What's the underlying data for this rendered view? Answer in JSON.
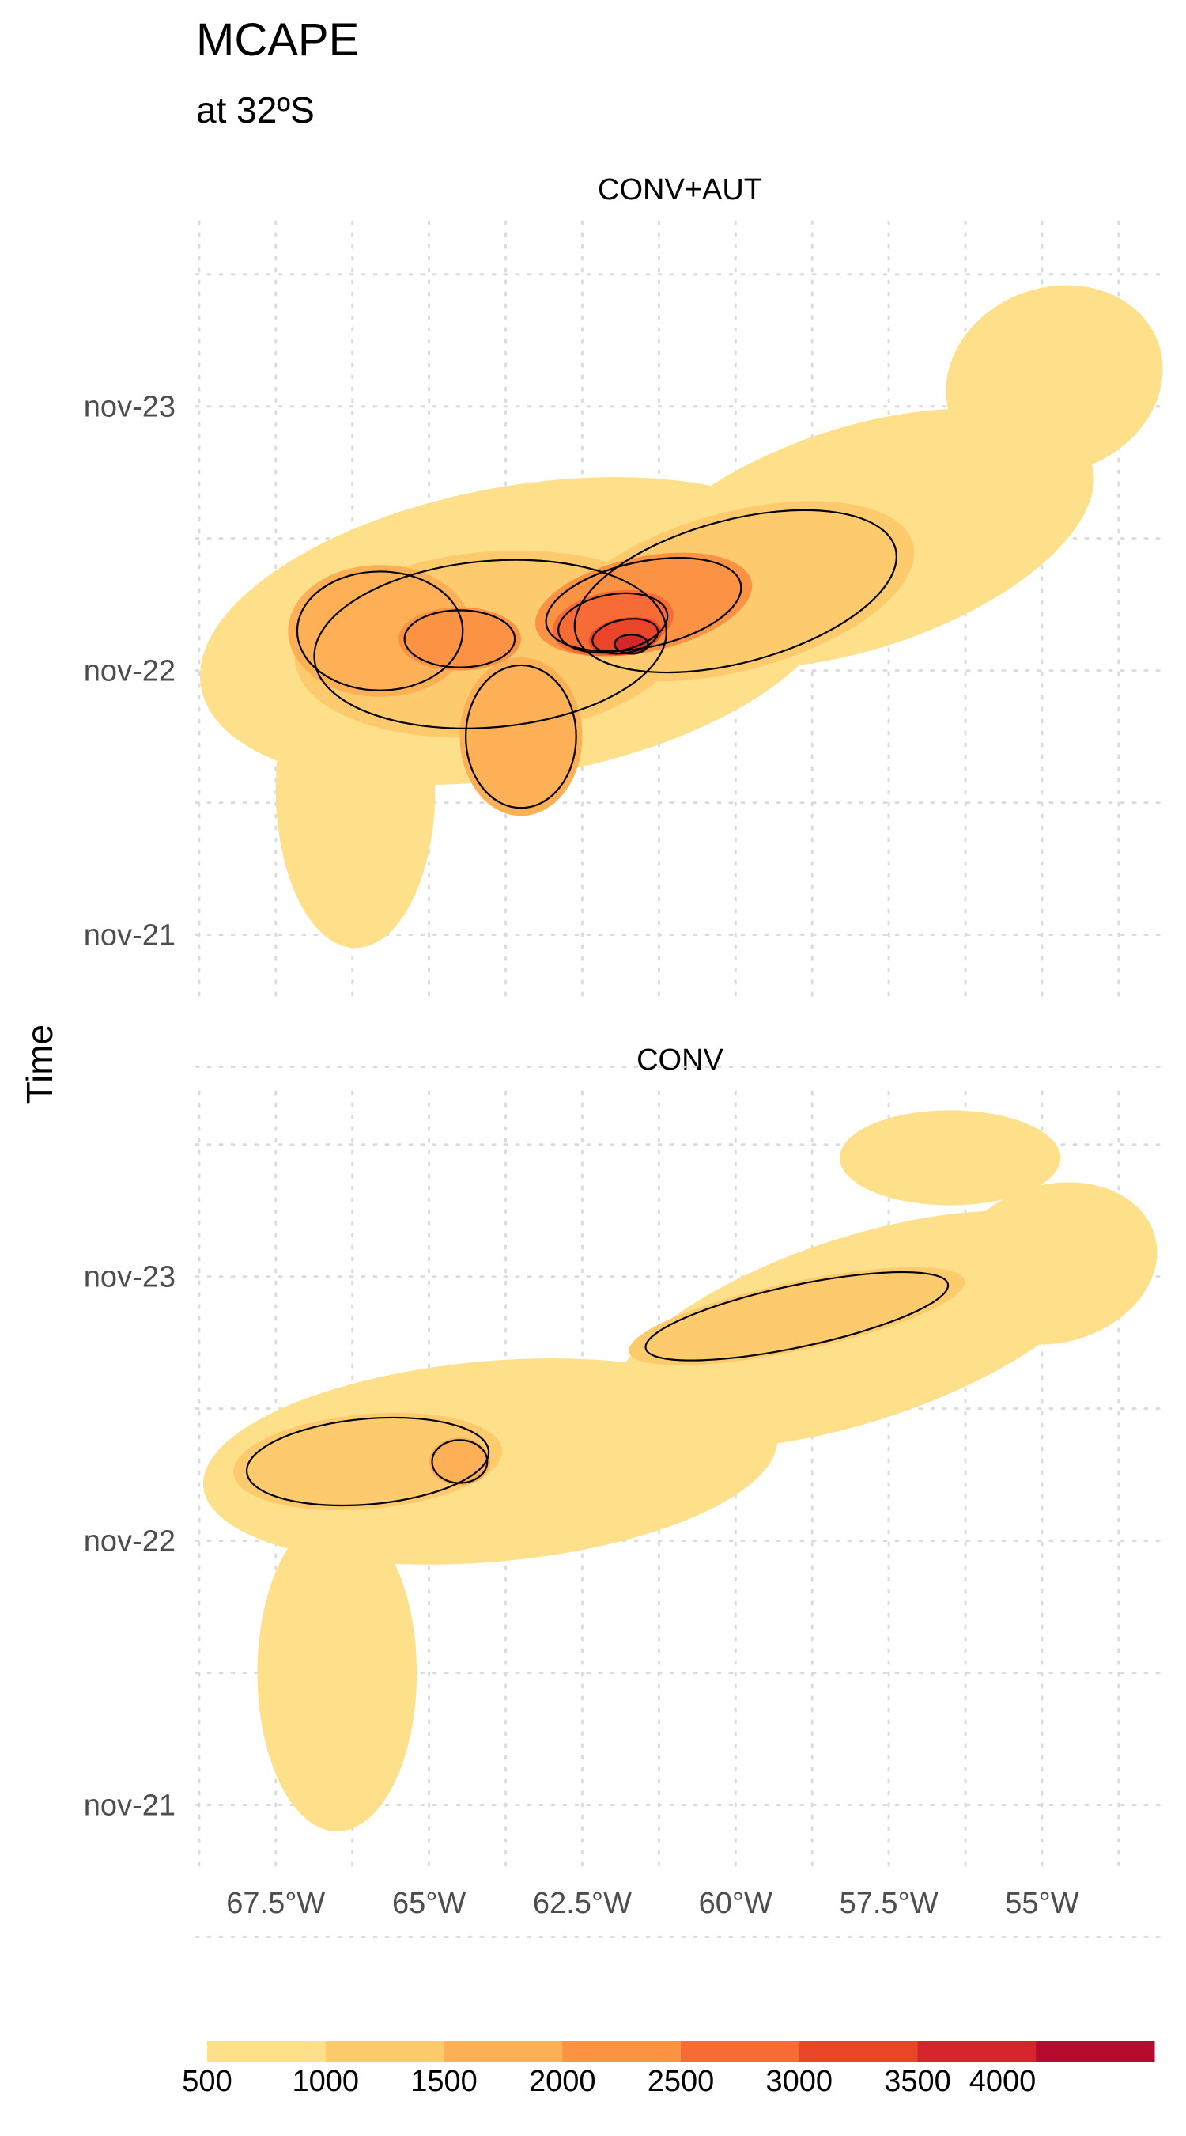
{
  "chart_data": {
    "type": "heatmap",
    "title": "MCAPE",
    "subtitle": "at 32ºS",
    "ylabel": "Time",
    "xlabel": "",
    "x_ticks": [
      "67.5°W",
      "65°W",
      "62.5°W",
      "60°W",
      "57.5°W",
      "55°W"
    ],
    "x_tick_values": [
      -67.5,
      -65,
      -62.5,
      -60,
      -57.5,
      -55
    ],
    "xlim": [
      -68.8,
      -53.0
    ],
    "y_ticks": [
      "nov-21",
      "nov-22",
      "nov-23"
    ],
    "y_tick_values": [
      0,
      1,
      2
    ],
    "ylim": [
      -0.25,
      2.7
    ],
    "grid": true,
    "legend": {
      "position": "bottom",
      "breaks": [
        "500",
        "1000",
        "1500",
        "2000",
        "2500",
        "3000",
        "3500",
        "4000"
      ],
      "colors": [
        "#FEE08B",
        "#FDCB6E",
        "#FDB055",
        "#FC9244",
        "#F76B36",
        "#EA4429",
        "#D7262B",
        "#B60A2E"
      ]
    },
    "panels": [
      {
        "title": "CONV+AUT",
        "blobs": [
          {
            "lon": -63.5,
            "day": 1.15,
            "rx": 5.3,
            "ry": 0.55,
            "rot": -10,
            "level": 1
          },
          {
            "lon": -58.0,
            "day": 1.5,
            "rx": 4.0,
            "ry": 0.42,
            "rot": -18,
            "level": 1
          },
          {
            "lon": -66.2,
            "day": 0.55,
            "rx": 1.3,
            "ry": 0.6,
            "rot": 0,
            "level": 1
          },
          {
            "lon": -54.8,
            "day": 2.1,
            "rx": 1.8,
            "ry": 0.35,
            "rot": -20,
            "level": 1
          },
          {
            "lon": -64.0,
            "day": 1.1,
            "rx": 3.2,
            "ry": 0.35,
            "rot": -5,
            "level": 2
          },
          {
            "lon": -60.0,
            "day": 1.3,
            "rx": 3.0,
            "ry": 0.3,
            "rot": -15,
            "level": 2
          },
          {
            "lon": -65.8,
            "day": 1.15,
            "rx": 1.5,
            "ry": 0.25,
            "rot": 0,
            "level": 3
          },
          {
            "lon": -63.5,
            "day": 0.75,
            "rx": 1.0,
            "ry": 0.3,
            "rot": 0,
            "level": 3
          },
          {
            "lon": -61.5,
            "day": 1.25,
            "rx": 1.8,
            "ry": 0.18,
            "rot": -12,
            "level": 4
          },
          {
            "lon": -64.5,
            "day": 1.12,
            "rx": 1.0,
            "ry": 0.12,
            "rot": 0,
            "level": 4
          },
          {
            "lon": -62.0,
            "day": 1.18,
            "rx": 1.0,
            "ry": 0.12,
            "rot": -10,
            "level": 5
          },
          {
            "lon": -61.8,
            "day": 1.13,
            "rx": 0.6,
            "ry": 0.07,
            "rot": -10,
            "level": 6
          },
          {
            "lon": -61.7,
            "day": 1.1,
            "rx": 0.3,
            "ry": 0.04,
            "rot": 0,
            "level": 7
          }
        ]
      },
      {
        "title": "CONV",
        "blobs": [
          {
            "lon": -64.0,
            "day": 1.3,
            "rx": 4.7,
            "ry": 0.38,
            "rot": -5,
            "level": 1
          },
          {
            "lon": -58.0,
            "day": 1.8,
            "rx": 4.2,
            "ry": 0.35,
            "rot": -18,
            "level": 1
          },
          {
            "lon": -66.5,
            "day": 0.5,
            "rx": 1.3,
            "ry": 0.6,
            "rot": 0,
            "level": 1
          },
          {
            "lon": -56.5,
            "day": 2.45,
            "rx": 1.8,
            "ry": 0.18,
            "rot": 0,
            "level": 1
          },
          {
            "lon": -54.8,
            "day": 2.05,
            "rx": 1.7,
            "ry": 0.3,
            "rot": -15,
            "level": 1
          },
          {
            "lon": -66.0,
            "day": 1.3,
            "rx": 2.2,
            "ry": 0.18,
            "rot": -5,
            "level": 2
          },
          {
            "lon": -59.0,
            "day": 1.85,
            "rx": 2.8,
            "ry": 0.13,
            "rot": -12,
            "level": 2
          },
          {
            "lon": -64.5,
            "day": 1.3,
            "rx": 0.5,
            "ry": 0.09,
            "rot": 0,
            "level": 3
          }
        ]
      }
    ]
  }
}
